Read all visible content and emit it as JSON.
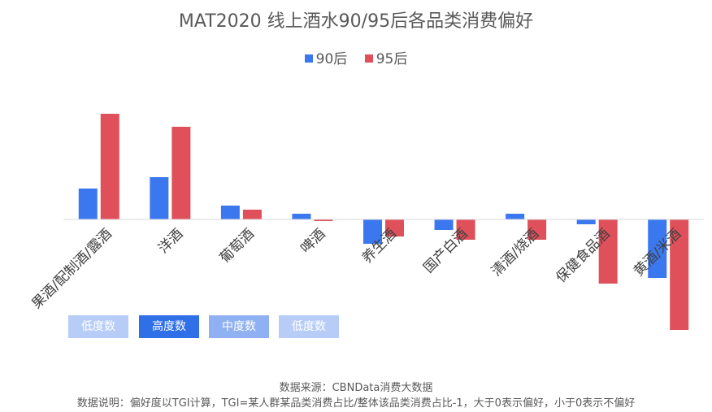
{
  "chart_data": {
    "type": "bar",
    "title": "MAT2020 线上酒水90/95后各品类消费偏好",
    "categories": [
      "果酒/配制酒/露酒",
      "洋酒",
      "葡萄酒",
      "啤酒",
      "养生酒",
      "国产白酒",
      "清酒/烧酒",
      "保健食品酒",
      "黄酒/米酒"
    ],
    "series": [
      {
        "name": "90后",
        "color": "#3b78f0",
        "values": [
          0.38,
          0.52,
          0.17,
          0.07,
          -0.3,
          -0.13,
          0.07,
          -0.06,
          -0.72
        ]
      },
      {
        "name": "95后",
        "color": "#e0505a",
        "values": [
          1.3,
          1.14,
          0.12,
          -0.02,
          -0.21,
          -0.25,
          -0.25,
          -0.79,
          -1.36
        ]
      }
    ],
    "ylim": [
      -1.6,
      1.6
    ],
    "legend": "top-center",
    "grid": false
  },
  "tags": [
    {
      "label": "低度数",
      "bg": "#b7cdf7",
      "fg": "#ffffff"
    },
    {
      "label": "高度数",
      "bg": "#2f6fe8",
      "fg": "#ffffff"
    },
    {
      "label": "中度数",
      "bg": "#8fb0f2",
      "fg": "#ffffff"
    },
    {
      "label": "低度数",
      "bg": "#b7cdf7",
      "fg": "#ffffff"
    }
  ],
  "footer": {
    "source": "数据来源：CBNData消费大数据",
    "note": "数据说明：偏好度以TGI计算，TGI=某人群某品类消费占比/整体该品类消费占比-1，大于0表示偏好，小于0表示不偏好"
  }
}
